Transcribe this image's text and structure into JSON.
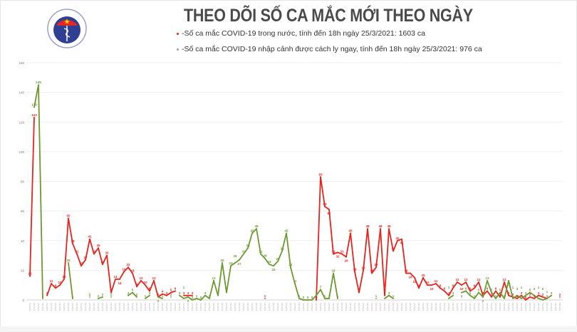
{
  "header": {
    "title": "THEO DÕI SỐ CA MẮC MỚI THEO NGÀY",
    "logo_text": [
      "BỘ Y TẾ",
      "MINISTRY OF HEALTH"
    ]
  },
  "legend": [
    {
      "label": "-Số ca mắc COVID-19 trong nước, tính đến 18h ngày 25/3/2021: 1603 ca",
      "color": "#e8231c"
    },
    {
      "label": "-Số ca mắc COVID-19 nhập cảnh được cách ly ngay, tính đến 18h ngày 25/3/2021: 976 ca",
      "color": "#6b9a2f"
    }
  ],
  "chart_data": {
    "type": "line",
    "ylim": [
      0,
      160
    ],
    "yticks": [
      "0",
      "20",
      "40",
      "60",
      "80",
      "100",
      "120",
      "140",
      "160"
    ],
    "grid": true,
    "series": [
      {
        "color": "#e8231c",
        "values": [
          16,
          123,
          null,
          null,
          3,
          11,
          8,
          10,
          14,
          55,
          38,
          31,
          23,
          27,
          41,
          31,
          35,
          24,
          30,
          5,
          14,
          14,
          19,
          22,
          18,
          9,
          13,
          10,
          6,
          13,
          2,
          4,
          3,
          5,
          6,
          null,
          3,
          3,
          3,
          null,
          null,
          null,
          null,
          null,
          null,
          null,
          null,
          null,
          null,
          null,
          null,
          null,
          null,
          null,
          null,
          1,
          null,
          null,
          null,
          null,
          null,
          null,
          null,
          null,
          null,
          null,
          null,
          0,
          83,
          63,
          61,
          31,
          32,
          31,
          29,
          45,
          19,
          5,
          20,
          48,
          18,
          22,
          48,
          3,
          48,
          33,
          40,
          41,
          18,
          18,
          15,
          8,
          15,
          10,
          10,
          11,
          8,
          6,
          3,
          8,
          12,
          10,
          12,
          6,
          8,
          12,
          3,
          6,
          2,
          6,
          2,
          12,
          3,
          2,
          1,
          3,
          0,
          2,
          1,
          3,
          2,
          1,
          null,
          null,
          2
        ]
      },
      {
        "color": "#6b9a2f",
        "values": [
          null,
          130,
          145,
          1,
          null,
          null,
          null,
          null,
          null,
          25,
          1,
          null,
          null,
          null,
          2,
          null,
          1,
          2,
          null,
          2,
          null,
          null,
          null,
          3,
          5,
          2,
          null,
          1,
          3,
          null,
          2,
          1,
          null,
          2,
          null,
          3,
          1,
          2,
          0,
          1,
          0,
          3,
          1,
          13,
          3,
          25,
          5,
          23,
          25,
          27,
          31,
          35,
          45,
          48,
          31,
          28,
          24,
          23,
          26,
          33,
          45,
          22,
          11,
          1,
          0,
          0,
          0,
          3,
          7,
          1,
          1,
          18,
          1,
          null,
          null,
          null,
          null,
          null,
          null,
          null,
          null,
          1,
          null,
          1,
          3,
          1,
          null,
          null,
          null,
          null,
          null,
          null,
          null,
          null,
          null,
          null,
          null,
          null,
          1,
          3,
          null,
          5,
          6,
          3,
          1,
          5,
          2,
          13,
          5,
          1,
          5,
          1,
          13,
          1,
          3,
          1,
          3,
          5,
          3,
          1,
          0,
          1,
          3,
          null,
          null
        ]
      }
    ]
  }
}
